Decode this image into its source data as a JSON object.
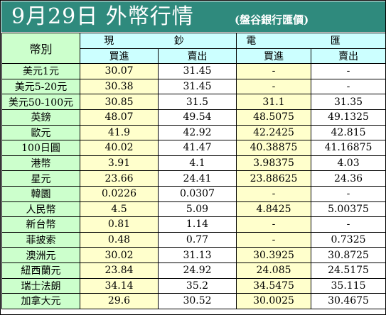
{
  "title": "9月29日 外幣行情",
  "source": "(盤谷銀行匯價)",
  "columns": {
    "name": "幣別",
    "cash": "現 鈔",
    "transfer": "電 匯",
    "buy": "買進",
    "sell": "賣出"
  },
  "rows": [
    {
      "name": "美元1元",
      "cash_buy": "30.07",
      "cash_sell": "31.45",
      "tt_buy": "-",
      "tt_sell": "-"
    },
    {
      "name": "美元5-20元",
      "cash_buy": "30.38",
      "cash_sell": "31.45",
      "tt_buy": "-",
      "tt_sell": "-"
    },
    {
      "name": "美元50-100元",
      "cash_buy": "30.85",
      "cash_sell": "31.5",
      "tt_buy": "31.1",
      "tt_sell": "31.35"
    },
    {
      "name": "英鎊",
      "cash_buy": "48.07",
      "cash_sell": "49.54",
      "tt_buy": "48.5075",
      "tt_sell": "49.1325"
    },
    {
      "name": "歐元",
      "cash_buy": "41.9",
      "cash_sell": "42.92",
      "tt_buy": "42.2425",
      "tt_sell": "42.815"
    },
    {
      "name": "100日圓",
      "cash_buy": "40.02",
      "cash_sell": "41.47",
      "tt_buy": "40.38875",
      "tt_sell": "41.16875"
    },
    {
      "name": "港幣",
      "cash_buy": "3.91",
      "cash_sell": "4.1",
      "tt_buy": "3.98375",
      "tt_sell": "4.03"
    },
    {
      "name": "星元",
      "cash_buy": "23.66",
      "cash_sell": "24.41",
      "tt_buy": "23.88625",
      "tt_sell": "24.36"
    },
    {
      "name": "韓圜",
      "cash_buy": "0.0226",
      "cash_sell": "0.0307",
      "tt_buy": "-",
      "tt_sell": "-"
    },
    {
      "name": "人民幣",
      "cash_buy": "4.5",
      "cash_sell": "5.09",
      "tt_buy": "4.8425",
      "tt_sell": "5.00375"
    },
    {
      "name": "新台幣",
      "cash_buy": "0.81",
      "cash_sell": "1.14",
      "tt_buy": "-",
      "tt_sell": "-"
    },
    {
      "name": "菲披索",
      "cash_buy": "0.48",
      "cash_sell": "0.77",
      "tt_buy": "-",
      "tt_sell": "0.7325"
    },
    {
      "name": "澳洲元",
      "cash_buy": "30.02",
      "cash_sell": "31.13",
      "tt_buy": "30.3925",
      "tt_sell": "30.8725"
    },
    {
      "name": "紐西蘭元",
      "cash_buy": "23.84",
      "cash_sell": "24.92",
      "tt_buy": "24.085",
      "tt_sell": "24.5175"
    },
    {
      "name": "瑞士法朗",
      "cash_buy": "34.14",
      "cash_sell": "35.2",
      "tt_buy": "34.5475",
      "tt_sell": "35.115"
    },
    {
      "name": "加拿大元",
      "cash_buy": "29.6",
      "cash_sell": "30.52",
      "tt_buy": "30.0025",
      "tt_sell": "30.4675"
    }
  ],
  "colors": {
    "header_bg": "#2f8a7d",
    "name_bg": "#ccffcc",
    "yellow_bg": "#ffffcc",
    "subhead_bg": "#ccffff"
  }
}
